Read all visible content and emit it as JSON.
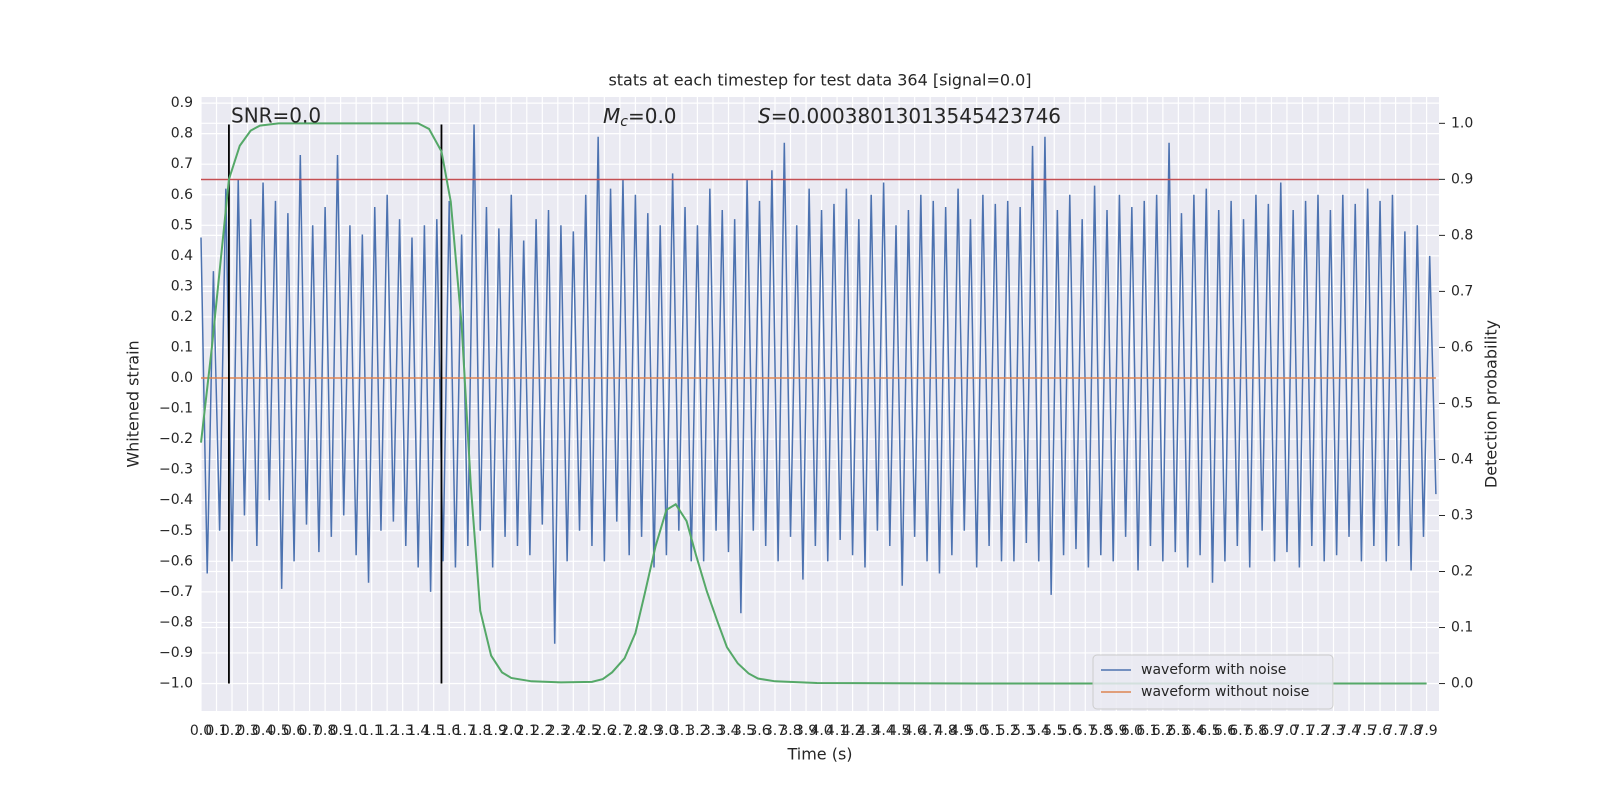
{
  "chart_data": {
    "type": "line",
    "title": "stats at each timestep for test data 364 [signal=0.0]",
    "x_label": "Time (s)",
    "y_label": "Whitened strain",
    "y2_label": "Detection probability",
    "annotations": {
      "snr": "SNR=0.0",
      "mc": {
        "symbol": "M",
        "subscript": "c",
        "rest": "=0.0"
      },
      "s": {
        "symbol": "S",
        "rest": "=0.00038013013545423746"
      }
    },
    "series": [
      {
        "name": "waveform with noise",
        "color": "#4c72b0",
        "x": [
          0,
          0.04,
          0.08,
          0.12,
          0.16,
          0.2,
          0.24,
          0.28,
          0.32,
          0.36,
          0.4,
          0.44,
          0.48,
          0.52,
          0.56,
          0.6,
          0.64,
          0.68,
          0.72,
          0.76,
          0.8,
          0.84,
          0.88,
          0.92,
          0.96,
          1,
          1.04,
          1.08,
          1.12,
          1.16,
          1.2,
          1.24,
          1.28,
          1.32,
          1.36,
          1.4,
          1.44,
          1.48,
          1.52,
          1.56,
          1.6,
          1.64,
          1.68,
          1.72,
          1.76,
          1.8,
          1.84,
          1.88,
          1.92,
          1.96,
          2,
          2.04,
          2.08,
          2.12,
          2.16,
          2.2,
          2.24,
          2.28,
          2.32,
          2.36,
          2.4,
          2.44,
          2.48,
          2.52,
          2.56,
          2.6,
          2.64,
          2.68,
          2.72,
          2.76,
          2.8,
          2.84,
          2.88,
          2.92,
          2.96,
          3,
          3.04,
          3.08,
          3.12,
          3.16,
          3.2,
          3.24,
          3.28,
          3.32,
          3.36,
          3.4,
          3.44,
          3.48,
          3.52,
          3.56,
          3.6,
          3.64,
          3.68,
          3.72,
          3.76,
          3.8,
          3.84,
          3.88,
          3.92,
          3.96,
          4,
          4.04,
          4.08,
          4.12,
          4.16,
          4.2,
          4.24,
          4.28,
          4.32,
          4.36,
          4.4,
          4.44,
          4.48,
          4.52,
          4.56,
          4.6,
          4.64,
          4.68,
          4.72,
          4.76,
          4.8,
          4.84,
          4.88,
          4.92,
          4.96,
          5,
          5.04,
          5.08,
          5.12,
          5.16,
          5.2,
          5.24,
          5.28,
          5.32,
          5.36,
          5.4,
          5.44,
          5.48,
          5.52,
          5.56,
          5.6,
          5.64,
          5.68,
          5.72,
          5.76,
          5.8,
          5.84,
          5.88,
          5.92,
          5.96,
          6,
          6.04,
          6.08,
          6.12,
          6.16,
          6.2,
          6.24,
          6.28,
          6.32,
          6.36,
          6.4,
          6.44,
          6.48,
          6.52,
          6.56,
          6.6,
          6.64,
          6.68,
          6.72,
          6.76,
          6.8,
          6.84,
          6.88,
          6.92,
          6.96,
          7,
          7.04,
          7.08,
          7.12,
          7.16,
          7.2,
          7.24,
          7.28,
          7.32,
          7.36,
          7.4,
          7.44,
          7.48,
          7.52,
          7.56,
          7.6,
          7.64,
          7.68,
          7.72,
          7.76,
          7.8,
          7.84,
          7.88,
          7.92,
          7.96
        ],
        "values": [
          0.46,
          -0.64,
          0.35,
          -0.5,
          0.62,
          -0.6,
          0.65,
          -0.45,
          0.52,
          -0.55,
          0.64,
          -0.4,
          0.58,
          -0.69,
          0.54,
          -0.6,
          0.73,
          -0.48,
          0.5,
          -0.57,
          0.56,
          -0.52,
          0.73,
          -0.45,
          0.5,
          -0.58,
          0.47,
          -0.67,
          0.56,
          -0.5,
          0.6,
          -0.47,
          0.52,
          -0.55,
          0.46,
          -0.62,
          0.5,
          -0.7,
          0.52,
          -0.6,
          0.58,
          -0.62,
          0.47,
          -0.55,
          0.83,
          -0.5,
          0.56,
          -0.62,
          0.49,
          -0.52,
          0.6,
          -0.55,
          0.45,
          -0.58,
          0.52,
          -0.48,
          0.55,
          -0.87,
          0.5,
          -0.6,
          0.48,
          -0.5,
          0.6,
          -0.55,
          0.79,
          -0.6,
          0.62,
          -0.47,
          0.65,
          -0.58,
          0.6,
          -0.52,
          0.54,
          -0.62,
          0.5,
          -0.58,
          0.67,
          -0.5,
          0.56,
          -0.6,
          0.5,
          -0.6,
          0.62,
          -0.5,
          0.55,
          -0.57,
          0.52,
          -0.77,
          0.65,
          -0.5,
          0.58,
          -0.55,
          0.68,
          -0.6,
          0.77,
          -0.52,
          0.5,
          -0.66,
          0.62,
          -0.55,
          0.55,
          -0.6,
          0.57,
          -0.53,
          0.62,
          -0.58,
          0.52,
          -0.62,
          0.6,
          -0.5,
          0.64,
          -0.55,
          0.5,
          -0.68,
          0.55,
          -0.52,
          0.6,
          -0.6,
          0.58,
          -0.64,
          0.56,
          -0.58,
          0.62,
          -0.5,
          0.52,
          -0.62,
          0.6,
          -0.55,
          0.57,
          -0.6,
          0.58,
          -0.6,
          0.56,
          -0.54,
          0.76,
          -0.6,
          0.79,
          -0.71,
          0.55,
          -0.58,
          0.6,
          -0.56,
          0.52,
          -0.62,
          0.63,
          -0.58,
          0.55,
          -0.6,
          0.6,
          -0.52,
          0.56,
          -0.63,
          0.58,
          -0.55,
          0.6,
          -0.6,
          0.77,
          -0.57,
          0.54,
          -0.62,
          0.6,
          -0.58,
          0.62,
          -0.67,
          0.55,
          -0.6,
          0.58,
          -0.55,
          0.52,
          -0.62,
          0.6,
          -0.5,
          0.57,
          -0.6,
          0.64,
          -0.57,
          0.55,
          -0.62,
          0.58,
          -0.55,
          0.6,
          -0.6,
          0.55,
          -0.58,
          0.6,
          -0.52,
          0.57,
          -0.6,
          0.62,
          -0.55,
          0.58,
          -0.6,
          0.6,
          -0.55,
          0.48,
          -0.63,
          0.5,
          -0.52,
          0.4,
          -0.38
        ]
      },
      {
        "name": "waveform without noise",
        "color": "#dd8452",
        "x": [
          0,
          7.96
        ],
        "values": [
          0,
          0
        ]
      }
    ],
    "probability": {
      "axis": "y2",
      "color": "#55a868",
      "x": [
        0,
        0.07,
        0.18,
        0.25,
        0.32,
        0.38,
        0.5,
        0.8,
        1.1,
        1.4,
        1.47,
        1.5,
        1.55,
        1.61,
        1.68,
        1.74,
        1.8,
        1.87,
        1.94,
        2.0,
        2.13,
        2.32,
        2.52,
        2.59,
        2.65,
        2.73,
        2.8,
        2.86,
        2.93,
        3.0,
        3.06,
        3.13,
        3.19,
        3.26,
        3.33,
        3.39,
        3.46,
        3.53,
        3.59,
        3.7,
        3.97,
        5.0,
        6.0,
        7.0,
        7.9
      ],
      "values": [
        0.43,
        0.6,
        0.9,
        0.96,
        0.987,
        0.996,
        1,
        1,
        1,
        1,
        0.99,
        0.975,
        0.95,
        0.86,
        0.64,
        0.35,
        0.13,
        0.05,
        0.02,
        0.01,
        0.004,
        0.002,
        0.003,
        0.008,
        0.02,
        0.045,
        0.09,
        0.16,
        0.245,
        0.31,
        0.32,
        0.29,
        0.23,
        0.165,
        0.11,
        0.065,
        0.036,
        0.018,
        0.009,
        0.004,
        0.001,
        0,
        0,
        0,
        0
      ]
    },
    "threshold": {
      "value": 0.65,
      "color": "#c44e52"
    },
    "vlines": {
      "x": [
        0.18,
        1.55
      ],
      "ymin": -1.0,
      "ymax": 0.83,
      "color": "#000000"
    },
    "xlim": [
      0,
      7.98
    ],
    "ylim": [
      -1.09,
      0.92
    ],
    "y2lim": [
      -0.049,
      1.047
    ],
    "xticks": [
      {
        "value": 0,
        "label": "0.0"
      },
      0.1,
      0.2,
      0.3,
      0.4,
      0.5,
      0.6,
      0.7,
      0.8,
      0.9,
      {
        "value": 1,
        "label": "1.0"
      },
      1.1,
      1.2,
      1.3,
      1.4,
      1.5,
      1.6,
      1.7,
      1.8,
      1.9,
      {
        "value": 2,
        "label": "2.0"
      },
      2.1,
      2.2,
      2.3,
      2.4,
      2.5,
      2.6,
      2.7,
      2.8,
      2.9,
      {
        "value": 3,
        "label": "3.0"
      },
      3.1,
      3.2,
      3.3,
      3.4,
      3.5,
      3.6,
      3.7,
      3.8,
      3.9,
      {
        "value": 4,
        "label": "4.0"
      },
      4.1,
      4.2,
      4.3,
      4.4,
      4.5,
      4.6,
      4.7,
      4.8,
      4.9,
      {
        "value": 5,
        "label": "5.0"
      },
      5.1,
      5.2,
      5.3,
      5.4,
      5.5,
      5.6,
      5.7,
      5.8,
      5.9,
      {
        "value": 6,
        "label": "6.0"
      },
      6.1,
      6.2,
      6.3,
      6.4,
      6.5,
      6.6,
      6.7,
      6.8,
      6.9,
      {
        "value": 7,
        "label": "7.0"
      },
      7.1,
      7.2,
      7.3,
      7.4,
      7.5,
      7.6,
      7.7,
      7.8,
      7.9
    ],
    "yticks": [
      {
        "value": -1,
        "label": "−1.0"
      },
      {
        "value": -0.9,
        "label": "−0.9"
      },
      {
        "value": -0.8,
        "label": "−0.8"
      },
      {
        "value": -0.7,
        "label": "−0.7"
      },
      {
        "value": -0.6,
        "label": "−0.6"
      },
      {
        "value": -0.5,
        "label": "−0.5"
      },
      {
        "value": -0.4,
        "label": "−0.4"
      },
      {
        "value": -0.3,
        "label": "−0.3"
      },
      {
        "value": -0.2,
        "label": "−0.2"
      },
      {
        "value": -0.1,
        "label": "−0.1"
      },
      {
        "value": 0,
        "label": "0.0"
      },
      0.1,
      0.2,
      0.3,
      0.4,
      0.5,
      0.6,
      0.7,
      0.8,
      0.9
    ],
    "y2ticks": [
      {
        "value": 0,
        "label": "0.0"
      },
      0.1,
      0.2,
      0.3,
      0.4,
      0.5,
      0.6,
      0.7,
      0.8,
      0.9,
      {
        "value": 1,
        "label": "1.0"
      }
    ],
    "grid": true,
    "legend": "lower right"
  }
}
